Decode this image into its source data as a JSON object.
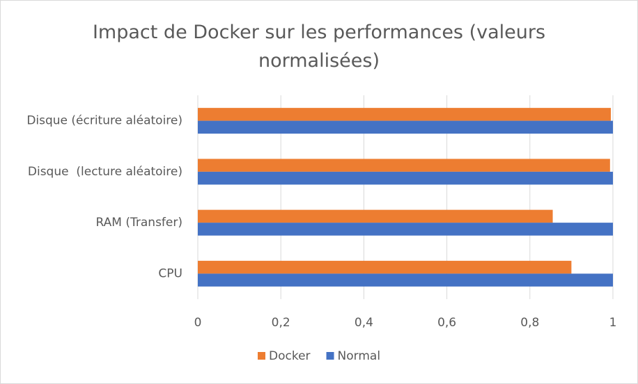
{
  "chart_data": {
    "type": "hbar",
    "title": "Impact de Docker sur les performances (valeurs normalisées)",
    "categories": [
      "CPU",
      "RAM (Transfer)",
      "Disque  (lecture aléatoire)",
      "Disque (écriture aléatoire)"
    ],
    "series": [
      {
        "name": "Docker",
        "color": "#ed7d31",
        "values": [
          0.9,
          0.855,
          0.993,
          0.995
        ]
      },
      {
        "name": "Normal",
        "color": "#4472c4",
        "values": [
          1,
          1,
          1,
          1
        ]
      }
    ],
    "xlim": [
      0,
      1
    ],
    "xticks": [
      0,
      {
        "value": 0.2,
        "label": "0,2"
      },
      {
        "value": 0.4,
        "label": "0,4"
      },
      {
        "value": 0.6,
        "label": "0,6"
      },
      {
        "value": 0.8,
        "label": "0,8"
      },
      1
    ],
    "grid": true,
    "legend": "bottom"
  }
}
